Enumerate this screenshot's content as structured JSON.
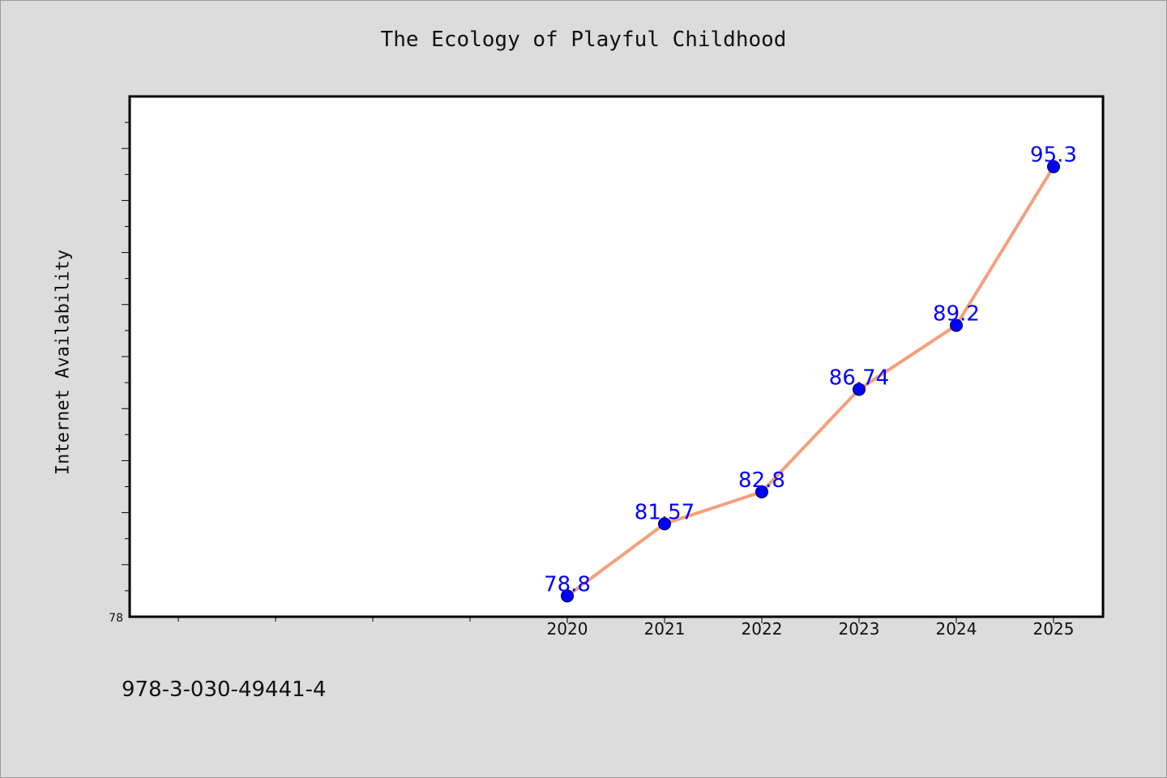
{
  "figure": {
    "title": "The Ecology of Playful Childhood",
    "footer_text": "978-3-030-49441-4"
  },
  "chart_data": {
    "type": "line",
    "title": "The Ecology of Playful Childhood",
    "xlabel": "",
    "ylabel": "Internet Availability",
    "x": [
      "2020",
      "2021",
      "2022",
      "2023",
      "2024",
      "2025"
    ],
    "series": [
      {
        "values": [
          78.8,
          81.57,
          82.8,
          86.74,
          89.2,
          95.3
        ]
      }
    ],
    "data_labels": [
      "78.8",
      "81.57",
      "82.8",
      "86.74",
      "89.2",
      "95.3"
    ],
    "y_tick_labels": [
      "78"
    ],
    "ylim": [
      78,
      98
    ],
    "grid": false,
    "legend": "none",
    "colors": {
      "line": "#f4a07c",
      "marker": "#0000ff",
      "label": "#0000ff",
      "background": "#dcdcdc",
      "plot_background": "#ffffff"
    }
  }
}
